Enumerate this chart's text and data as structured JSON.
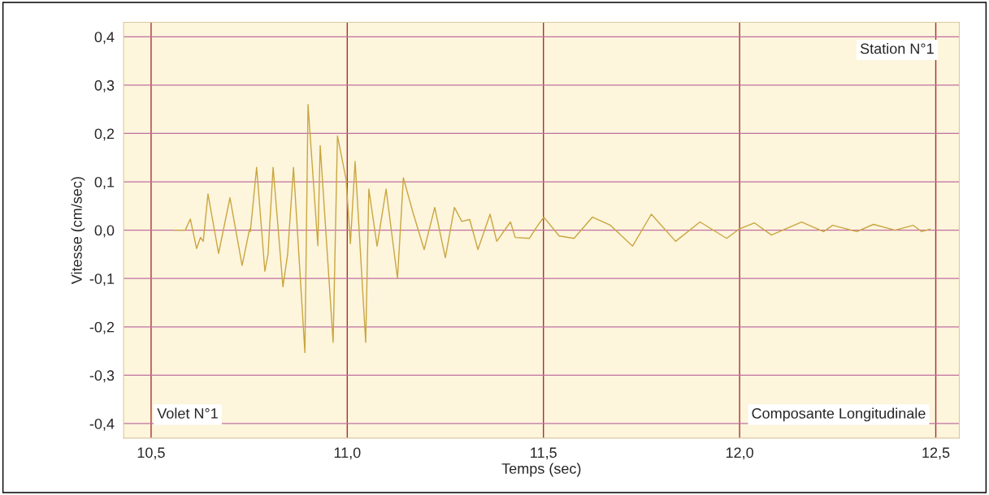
{
  "chart_data": {
    "type": "line",
    "xlabel": "Temps (sec)",
    "ylabel": "Vitesse (cm/sec)",
    "annotations": [
      "Station N°1",
      "Volet N°1",
      "Composante Longitudinale"
    ],
    "series": [
      {
        "color": "#c9a640",
        "x": [
          10.56,
          10.587,
          10.6,
          10.616,
          10.626,
          10.633,
          10.645,
          10.672,
          10.701,
          10.732,
          10.751,
          10.753,
          10.769,
          10.79,
          10.798,
          10.811,
          10.836,
          10.848,
          10.863,
          10.892,
          10.9,
          10.925,
          10.931,
          10.964,
          10.975,
          10.997,
          11.008,
          11.02,
          11.047,
          11.055,
          11.076,
          11.099,
          11.128,
          11.143,
          11.168,
          11.196,
          11.223,
          11.25,
          11.273,
          11.292,
          11.312,
          11.333,
          11.364,
          11.381,
          11.416,
          11.428,
          11.464,
          11.484,
          11.501,
          11.54,
          11.578,
          11.625,
          11.671,
          11.727,
          11.775,
          11.837,
          11.899,
          11.967,
          11.998,
          12.038,
          12.081,
          12.158,
          12.214,
          12.237,
          12.299,
          12.341,
          12.396,
          12.443,
          12.464,
          12.485
        ],
        "values": [
          0,
          0,
          0.023,
          -0.038,
          -0.015,
          -0.023,
          0.075,
          -0.048,
          0.067,
          -0.073,
          0.002,
          -0.003,
          0.13,
          -0.085,
          -0.05,
          0.13,
          -0.117,
          -0.05,
          0.13,
          -0.253,
          0.26,
          -0.032,
          0.175,
          -0.232,
          0.195,
          0.105,
          -0.028,
          0.142,
          -0.232,
          0.085,
          -0.033,
          0.085,
          -0.1,
          0.108,
          0.035,
          -0.04,
          0.047,
          -0.057,
          0.047,
          0.018,
          0.022,
          -0.04,
          0.033,
          -0.023,
          0.017,
          -0.015,
          -0.017,
          0.008,
          0.027,
          -0.012,
          -0.017,
          0.027,
          0.01,
          -0.033,
          0.033,
          -0.023,
          0.017,
          -0.017,
          0.002,
          0.015,
          -0.01,
          0.017,
          -0.003,
          0.01,
          -0.003,
          0.012,
          0,
          0.01,
          -0.003,
          0.002
        ]
      }
    ],
    "xlim": [
      10.43,
      12.56
    ],
    "ylim": [
      -0.43,
      0.43
    ],
    "xticks": [
      {
        "value": 10.5,
        "label": "10,5"
      },
      {
        "value": 11.0,
        "label": "11,0"
      },
      {
        "value": 11.5,
        "label": "11,5"
      },
      {
        "value": 12.0,
        "label": "12,0"
      },
      {
        "value": 12.5,
        "label": "12,5"
      }
    ],
    "yticks": [
      {
        "value": -0.4,
        "label": "-0,4"
      },
      {
        "value": -0.3,
        "label": "-0,3"
      },
      {
        "value": -0.2,
        "label": "-0,2"
      },
      {
        "value": -0.1,
        "label": "-0,1"
      },
      {
        "value": 0.0,
        "label": "0,0"
      },
      {
        "value": 0.1,
        "label": "0,1"
      },
      {
        "value": 0.2,
        "label": "0,2"
      },
      {
        "value": 0.3,
        "label": "0,3"
      },
      {
        "value": 0.4,
        "label": "0,4"
      }
    ],
    "grid": true,
    "legend": false,
    "marker": "none",
    "line_style": "solid"
  }
}
